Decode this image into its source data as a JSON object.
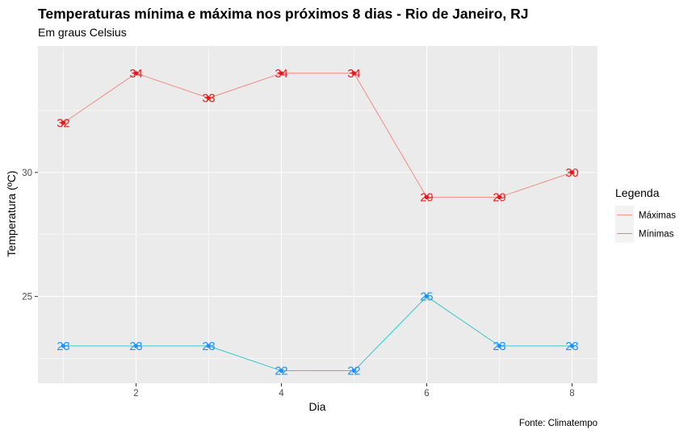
{
  "chart_data": {
    "type": "line",
    "title": "Temperaturas mínima e máxima nos próximos 8 dias - Rio de Janeiro, RJ",
    "subtitle": "Em graus Celsius",
    "xlabel": "Dia",
    "ylabel": "Temperatura (ºC)",
    "caption": "Fonte: Climatempo",
    "x": [
      1,
      2,
      3,
      4,
      5,
      6,
      7,
      8
    ],
    "xlim": [
      0.65,
      8.35
    ],
    "ylim": [
      21.5,
      35.1
    ],
    "x_ticks": [
      2,
      4,
      6,
      8
    ],
    "y_ticks": [
      25,
      30
    ],
    "grid": true,
    "legend": {
      "title": "Legenda",
      "position": "right",
      "entries": [
        "Máximas",
        "Mínimas"
      ]
    },
    "series": [
      {
        "name": "Máximas",
        "color": "#F8766D",
        "label_color": "#E41A1C",
        "values": [
          32,
          34,
          33,
          34,
          34,
          29,
          29,
          30
        ]
      },
      {
        "name": "Mínimas",
        "color": "#00BFC4",
        "label_color": "#1E90FF",
        "values": [
          23,
          23,
          23,
          22,
          22,
          25,
          23,
          23
        ]
      }
    ]
  }
}
